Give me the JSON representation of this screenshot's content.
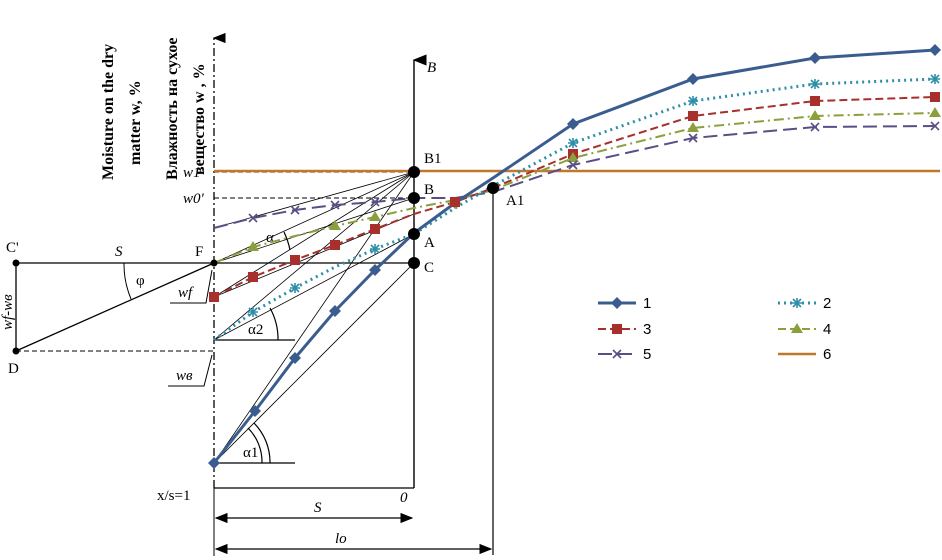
{
  "axis_titles": {
    "left_en_1": "Moisture on the dry",
    "left_en_2": "matter w, %",
    "left_ru_1": "Влажность на сухое",
    "left_ru_2": "вещество w , %",
    "vertical_B": "B"
  },
  "point_labels": {
    "B1": "B1",
    "B": "B",
    "A": "A",
    "C": "C",
    "A1": "A1",
    "F": "F",
    "Cp": "C'",
    "D": "D"
  },
  "value_labels": {
    "w1p": "w1'",
    "w0p": "w0'",
    "wf": "wf",
    "wv": "wв",
    "wf_wv": "wf-wв"
  },
  "angles": {
    "alpha": "α",
    "alpha1": "α1",
    "alpha2": "α2",
    "phi": "φ"
  },
  "dims": {
    "S_top": "S",
    "S_bottom": "S",
    "lo": "lo",
    "xs": "x/s=1",
    "zero": "0"
  },
  "legend": [
    {
      "id": "1",
      "color": "#3b5c8f",
      "marker": "diamond",
      "dash": "solid"
    },
    {
      "id": "2",
      "color": "#2e8fa8",
      "marker": "asterisk",
      "dash": "dotted"
    },
    {
      "id": "3",
      "color": "#a8302c",
      "marker": "square",
      "dash": "dashed"
    },
    {
      "id": "4",
      "color": "#8aa03c",
      "marker": "triangle",
      "dash": "dashdot"
    },
    {
      "id": "5",
      "color": "#5a4e86",
      "marker": "cross",
      "dash": "longdash"
    },
    {
      "id": "6",
      "color": "#c0782e",
      "marker": "none",
      "dash": "solid"
    }
  ]
}
